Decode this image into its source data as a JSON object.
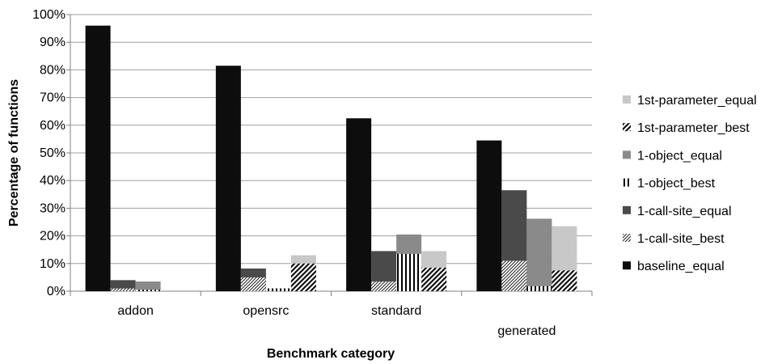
{
  "chart_data": {
    "type": "bar",
    "xlabel": "Benchmark category",
    "ylabel": "Percentage of functions",
    "ylim": [
      0,
      100
    ],
    "ytick_step": 10,
    "ytick_suffix": "%",
    "grid": "horizontal",
    "legend_position": "right",
    "categories": [
      "addon",
      "opensrc",
      "standard",
      "generated"
    ],
    "bar_groups": [
      [
        {
          "series": "baseline_equal",
          "value": 96
        },
        {
          "series": "1-call-site_equal",
          "value": 4,
          "inner_series": "1-call-site_best",
          "inner_value": 1
        },
        {
          "series": "1-object_equal",
          "value": 3.5,
          "inner_series": "1-object_best",
          "inner_value": 0.5
        },
        {
          "series": "1st-parameter_equal",
          "value": 0,
          "inner_series": "1st-parameter_best",
          "inner_value": 0
        }
      ],
      [
        {
          "series": "baseline_equal",
          "value": 81.5
        },
        {
          "series": "1-call-site_equal",
          "value": 8.2,
          "inner_series": "1-call-site_best",
          "inner_value": 5
        },
        {
          "series": "1-object_equal",
          "value": 1,
          "inner_series": "1-object_best",
          "inner_value": 1
        },
        {
          "series": "1st-parameter_equal",
          "value": 13,
          "inner_series": "1st-parameter_best",
          "inner_value": 10
        }
      ],
      [
        {
          "series": "baseline_equal",
          "value": 62.5
        },
        {
          "series": "1-call-site_equal",
          "value": 14.5,
          "inner_series": "1-call-site_best",
          "inner_value": 3.5
        },
        {
          "series": "1-object_equal",
          "value": 20.5,
          "inner_series": "1-object_best",
          "inner_value": 13.5
        },
        {
          "series": "1st-parameter_equal",
          "value": 14.5,
          "inner_series": "1st-parameter_best",
          "inner_value": 8.5
        }
      ],
      [
        {
          "series": "baseline_equal",
          "value": 54.5
        },
        {
          "series": "1-call-site_equal",
          "value": 36.5,
          "inner_series": "1-call-site_best",
          "inner_value": 11
        },
        {
          "series": "1-object_equal",
          "value": 26.2,
          "inner_series": "1-object_best",
          "inner_value": 1.8
        },
        {
          "series": "1st-parameter_equal",
          "value": 23.5,
          "inner_series": "1st-parameter_best",
          "inner_value": 7.5
        }
      ]
    ],
    "legend": [
      {
        "name": "1st-parameter_equal",
        "color": "#c8c8c8",
        "pattern": "solid"
      },
      {
        "name": "1st-parameter_best",
        "color": "#ffffff",
        "pattern": "diag-thick"
      },
      {
        "name": "1-object_equal",
        "color": "#8a8a8a",
        "pattern": "solid"
      },
      {
        "name": "1-object_best",
        "color": "#ffffff",
        "pattern": "vertical"
      },
      {
        "name": "1-call-site_equal",
        "color": "#4a4a4a",
        "pattern": "solid"
      },
      {
        "name": "1-call-site_best",
        "color": "#ffffff",
        "pattern": "diag-thin"
      },
      {
        "name": "baseline_equal",
        "color": "#0d0d0d",
        "pattern": "solid"
      }
    ]
  }
}
